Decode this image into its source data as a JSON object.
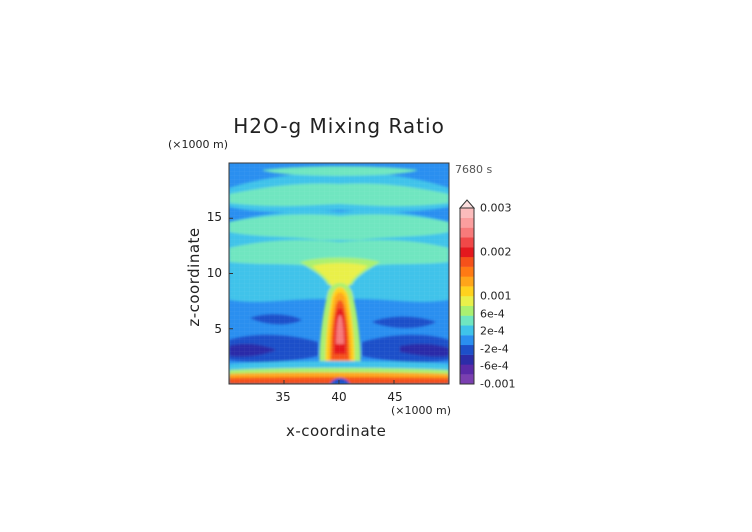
{
  "chart_data": {
    "type": "heatmap",
    "title": "H2O-g Mixing Ratio",
    "xlabel": "x-coordinate",
    "ylabel": "z-coordinate",
    "x_unit": "(×1000 m)",
    "y_unit": "(×1000 m)",
    "time_label": "7680 s",
    "xlim": [
      30,
      50
    ],
    "ylim": [
      0,
      20
    ],
    "x_ticks": [
      35,
      40,
      45
    ],
    "y_ticks": [
      5,
      10,
      15
    ],
    "colorbar": {
      "labels": [
        "0.003",
        "0.002",
        "0.001",
        "6e-4",
        "2e-4",
        "-2e-4",
        "-6e-4",
        "-0.001"
      ],
      "label_values": [
        0.003,
        0.002,
        0.001,
        0.0006,
        0.0002,
        -0.0002,
        -0.0006,
        -0.001
      ],
      "colors": [
        "#7a3fb0",
        "#5a2aa8",
        "#2c2ca8",
        "#1d4fc9",
        "#2a8ff0",
        "#3fc3ea",
        "#6fe6c0",
        "#aaf070",
        "#e9f04a",
        "#ffd21e",
        "#ffa51a",
        "#ff7a14",
        "#f5511a",
        "#e4181e",
        "#f04848",
        "#f77a7a",
        "#fb9e9e",
        "#fcbcbc"
      ],
      "extend": "max"
    },
    "grid": false
  }
}
